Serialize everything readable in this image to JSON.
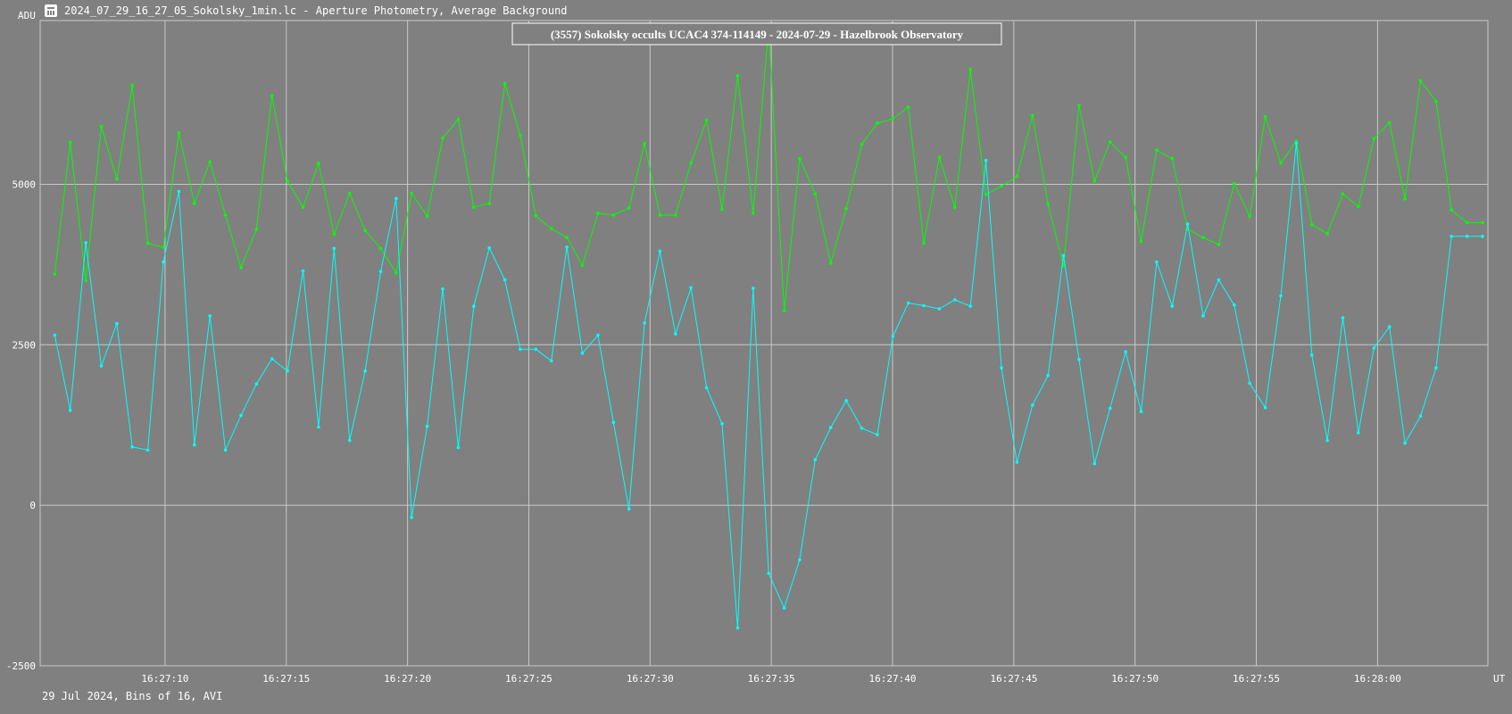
{
  "window": {
    "title": "2024_07_29_16_27_05_Sokolsky_1min.lc - Aperture Photometry, Average Background",
    "icon": "light-curve-app-icon"
  },
  "footer": "29 Jul 2024, Bins of 16, AVI",
  "colors": {
    "background": "#808080",
    "grid": "#c8c8c8",
    "target": "#00ff00",
    "comparison": "#00ffff",
    "text": "#ffffff"
  },
  "chart_data": {
    "type": "line",
    "title": "(3557) Sokolsky occults UCAC4 374-114149 - 2024-07-29 - Hazelbrook Observatory",
    "xlabel": "UT",
    "ylabel": "ADU",
    "ylim": [
      -2500,
      7550
    ],
    "xlim_seconds_after_16_27_05": [
      -0.15,
      59.55
    ],
    "grid": true,
    "y_ticks": [
      "-2500",
      "0",
      "2500",
      "5000"
    ],
    "y_tick_values": [
      -2500,
      0,
      2500,
      5000
    ],
    "x_ticks": [
      "16:27:10",
      "16:27:15",
      "16:27:20",
      "16:27:25",
      "16:27:30",
      "16:27:35",
      "16:27:40",
      "16:27:45",
      "16:27:50",
      "16:27:55",
      "16:28:00"
    ],
    "x_tick_values": [
      5,
      10,
      15,
      20,
      25,
      30,
      35,
      40,
      45,
      50,
      55
    ],
    "x_seconds_after_16_27_05": [
      0.45,
      1.09,
      1.73,
      2.37,
      3.01,
      3.65,
      4.29,
      4.93,
      5.57,
      6.21,
      6.85,
      7.49,
      8.13,
      8.77,
      9.41,
      10.05,
      10.69,
      11.33,
      11.97,
      12.61,
      13.25,
      13.89,
      14.53,
      15.17,
      15.81,
      16.45,
      17.09,
      17.73,
      18.37,
      19.01,
      19.65,
      20.29,
      20.93,
      21.57,
      22.21,
      22.85,
      23.49,
      24.13,
      24.77,
      25.41,
      26.05,
      26.69,
      27.33,
      27.97,
      28.61,
      29.25,
      29.89,
      30.53,
      31.17,
      31.81,
      32.45,
      33.09,
      33.73,
      34.37,
      35.01,
      35.65,
      36.29,
      36.93,
      37.57,
      38.21,
      38.85,
      39.49,
      40.13,
      40.77,
      41.41,
      42.05,
      42.69,
      43.33,
      43.97,
      44.61,
      45.25,
      45.89,
      46.53,
      47.17,
      47.81,
      48.45,
      49.09,
      49.73,
      50.37,
      51.01,
      51.65,
      52.29,
      52.93,
      53.57,
      54.21,
      54.85,
      55.49,
      56.13,
      56.77,
      57.41,
      58.05,
      58.69,
      59.33
    ],
    "series": [
      {
        "color": "#00ff00",
        "values": [
          3600,
          5650,
          3500,
          5900,
          5080,
          6540,
          4080,
          4020,
          5800,
          4700,
          5350,
          4520,
          3700,
          4300,
          6380,
          5050,
          4640,
          5330,
          4220,
          4860,
          4280,
          4000,
          3620,
          4860,
          4500,
          5720,
          6010,
          4640,
          4700,
          6570,
          5760,
          4510,
          4310,
          4170,
          3740,
          4550,
          4520,
          4630,
          5630,
          4520,
          4520,
          5330,
          6000,
          4610,
          6690,
          4550,
          7450,
          3030,
          5400,
          4850,
          3770,
          4620,
          5620,
          5950,
          6020,
          6200,
          4080,
          5420,
          4640,
          6790,
          4840,
          4970,
          5120,
          6070,
          4690,
          3730,
          6230,
          5050,
          5660,
          5420,
          4110,
          5530,
          5400,
          4300,
          4170,
          4060,
          5010,
          4500,
          6050,
          5330,
          5670,
          4370,
          4230,
          4850,
          4650,
          5710,
          5960,
          4770,
          6610,
          6290,
          4600,
          4400,
          4400
        ]
      },
      {
        "color": "#00ffff",
        "values": [
          2650,
          1480,
          4090,
          2170,
          2830,
          910,
          860,
          3790,
          4890,
          940,
          2950,
          860,
          1400,
          1890,
          2280,
          2090,
          3650,
          1220,
          4000,
          1010,
          2090,
          3640,
          4780,
          -190,
          1230,
          3370,
          900,
          3100,
          4010,
          3510,
          2430,
          2430,
          2250,
          4020,
          2370,
          2650,
          1290,
          -60,
          2840,
          3960,
          2670,
          3390,
          1830,
          1270,
          -1910,
          3380,
          -1060,
          -1600,
          -850,
          710,
          1210,
          1630,
          1200,
          1100,
          2630,
          3150,
          3110,
          3060,
          3200,
          3100,
          5370,
          2140,
          670,
          1560,
          2020,
          3890,
          2270,
          650,
          1510,
          2390,
          1460,
          3790,
          3100,
          4380,
          2950,
          3510,
          3120,
          1900,
          1520,
          3260,
          5640,
          2340,
          1010,
          2920,
          1130,
          2450,
          2780,
          970,
          1390,
          2140,
          4190,
          4190,
          4190
        ]
      }
    ]
  }
}
